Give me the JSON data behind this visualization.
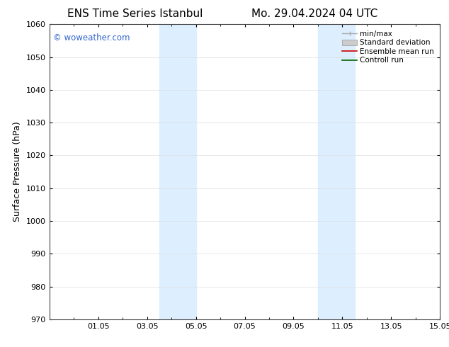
{
  "title_left": "ENS Time Series Istanbul",
  "title_right": "Mo. 29.04.2024 04 UTC",
  "ylabel": "Surface Pressure (hPa)",
  "ylim": [
    970,
    1060
  ],
  "yticks": [
    970,
    980,
    990,
    1000,
    1010,
    1020,
    1030,
    1040,
    1050,
    1060
  ],
  "xlim": [
    0,
    16
  ],
  "xtick_labels": [
    "01.05",
    "03.05",
    "05.05",
    "07.05",
    "09.05",
    "11.05",
    "13.05",
    "15.05"
  ],
  "xtick_positions": [
    2,
    4,
    6,
    8,
    10,
    12,
    14,
    16
  ],
  "shaded_bands": [
    {
      "x_start": 4.5,
      "x_end": 6.0
    },
    {
      "x_start": 11.0,
      "x_end": 12.5
    }
  ],
  "shaded_color": "#ddeeff",
  "watermark_text": "© woweather.com",
  "watermark_color": "#3366cc",
  "legend_entries": [
    {
      "label": "min/max",
      "color": "#aaaaaa",
      "lw": 1.0,
      "style": "minmax"
    },
    {
      "label": "Standard deviation",
      "color": "#cccccc",
      "lw": 5,
      "style": "band"
    },
    {
      "label": "Ensemble mean run",
      "color": "#cc0000",
      "lw": 1.2,
      "style": "line"
    },
    {
      "label": "Controll run",
      "color": "#006600",
      "lw": 1.2,
      "style": "line"
    }
  ],
  "background_color": "#ffffff",
  "grid_color": "#dddddd",
  "title_fontsize": 11,
  "axis_label_fontsize": 9,
  "tick_fontsize": 8,
  "legend_fontsize": 7.5
}
